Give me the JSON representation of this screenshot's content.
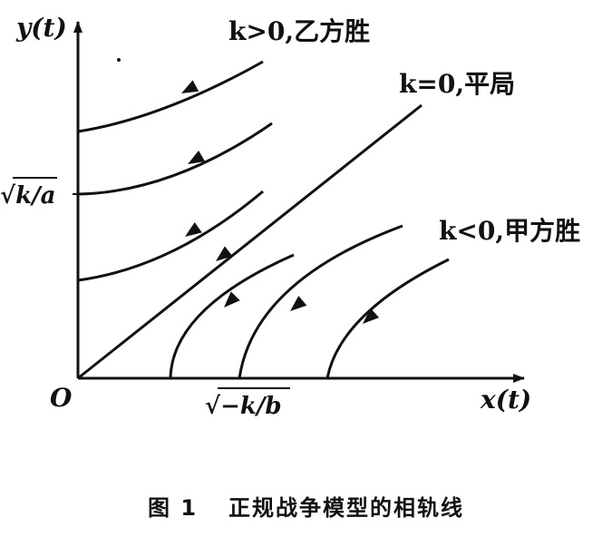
{
  "figure": {
    "axis_x_label": "x(t)",
    "axis_y_label": "y(t)",
    "origin_label": "O",
    "y_tick_label": "√k/a",
    "x_tick_label": "√−k/b",
    "annotations": {
      "k_positive": "k>0,乙方胜",
      "k_zero": "k=0,平局",
      "k_negative": "k<0,甲方胜"
    }
  },
  "caption": {
    "number": "图 1",
    "text": "正规战争模型的相轨线"
  },
  "colors": {
    "ink": "#111111",
    "background": "#ffffff"
  }
}
